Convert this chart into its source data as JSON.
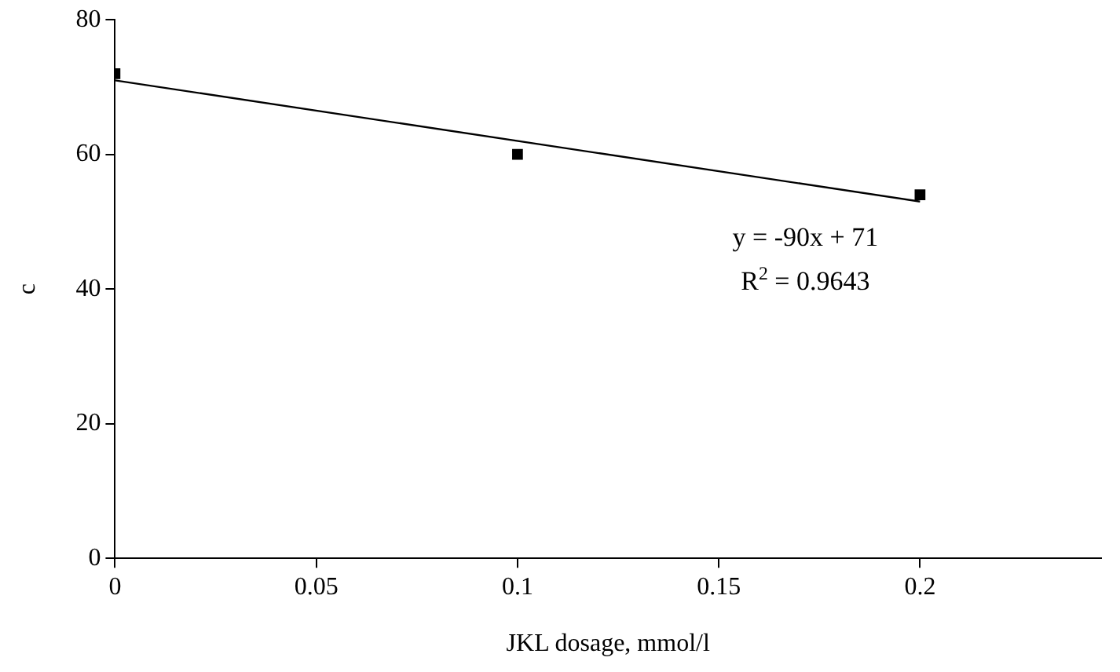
{
  "chart_data": {
    "type": "scatter",
    "xlabel": "JKL dosage, mmol/l",
    "ylabel": "c",
    "xlim": [
      0,
      0.245
    ],
    "xticks": [
      0,
      0.05,
      0.1,
      0.15,
      0.2
    ],
    "ylim": [
      0,
      80
    ],
    "yticks": [
      0,
      20,
      40,
      60,
      80
    ],
    "series": [
      {
        "type": "scatter",
        "color": "#000000",
        "x": [
          0,
          0.1,
          0.2
        ],
        "values": [
          72,
          60,
          54
        ],
        "marker": "square"
      },
      {
        "type": "line",
        "color": "#000000",
        "x": [
          0,
          0.2
        ],
        "values": [
          71,
          53
        ],
        "marker": "none",
        "line_style": "solid"
      }
    ],
    "annotations": [
      "y = -90x + 71",
      "R$^{2}$ = 0.9643"
    ],
    "grid": false,
    "legend": false
  }
}
